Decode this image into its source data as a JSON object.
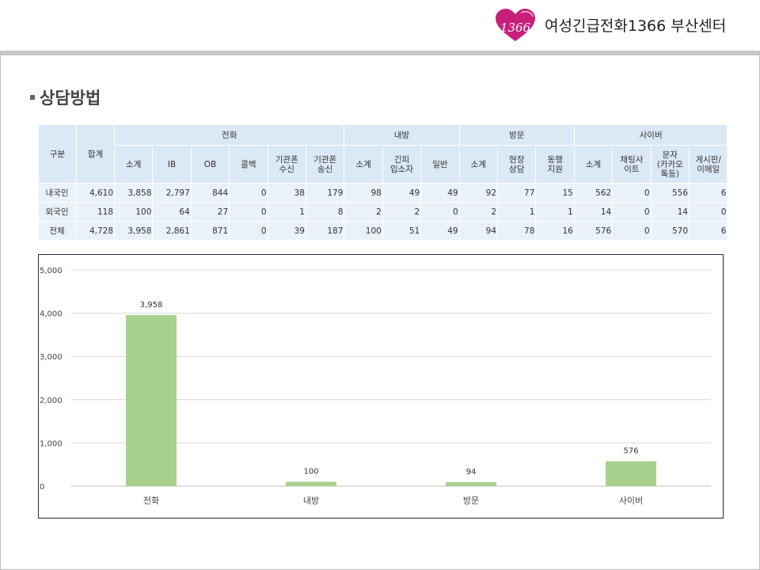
{
  "header": {
    "org_name": "여성긴급전화1366 부산센터",
    "logo_text": "1366"
  },
  "section_title": "상담방법",
  "table": {
    "col_gubun": "구분",
    "col_total": "합계",
    "groups": [
      "전화",
      "내방",
      "방문",
      "사이버"
    ],
    "subheaders": [
      "소계",
      "IB",
      "OB",
      "콜백",
      "기관폰\n수신",
      "기관폰\n송신",
      "소계",
      "긴피\n입소자",
      "일반",
      "소계",
      "현장\n상담",
      "동행\n지원",
      "소계",
      "채팅사\n이트",
      "문자\n(카카오\n톡등)",
      "게시판/\n이메일"
    ],
    "rows": [
      {
        "label": "내국인",
        "cells": [
          "4,610",
          "3,858",
          "2,797",
          "844",
          "0",
          "38",
          "179",
          "98",
          "49",
          "49",
          "92",
          "77",
          "15",
          "562",
          "0",
          "556",
          "6"
        ]
      },
      {
        "label": "외국인",
        "cells": [
          "118",
          "100",
          "64",
          "27",
          "0",
          "1",
          "8",
          "2",
          "2",
          "0",
          "2",
          "1",
          "1",
          "14",
          "0",
          "14",
          "0"
        ]
      },
      {
        "label": "전체",
        "cells": [
          "4,728",
          "3,958",
          "2,861",
          "871",
          "0",
          "39",
          "187",
          "100",
          "51",
          "49",
          "94",
          "78",
          "16",
          "576",
          "0",
          "570",
          "6"
        ]
      }
    ]
  },
  "chart_data": {
    "type": "bar",
    "categories": [
      "전화",
      "내방",
      "방문",
      "사이버"
    ],
    "values": [
      3958,
      100,
      94,
      576
    ],
    "value_labels": [
      "3,958",
      "100",
      "94",
      "576"
    ],
    "yticks": [
      "0",
      "1,000",
      "2,000",
      "3,000",
      "4,000",
      "5,000"
    ],
    "ylim": [
      0,
      5000
    ],
    "grid": true,
    "bar_color": "#a9d18e",
    "title": "",
    "xlabel": "",
    "ylabel": ""
  }
}
